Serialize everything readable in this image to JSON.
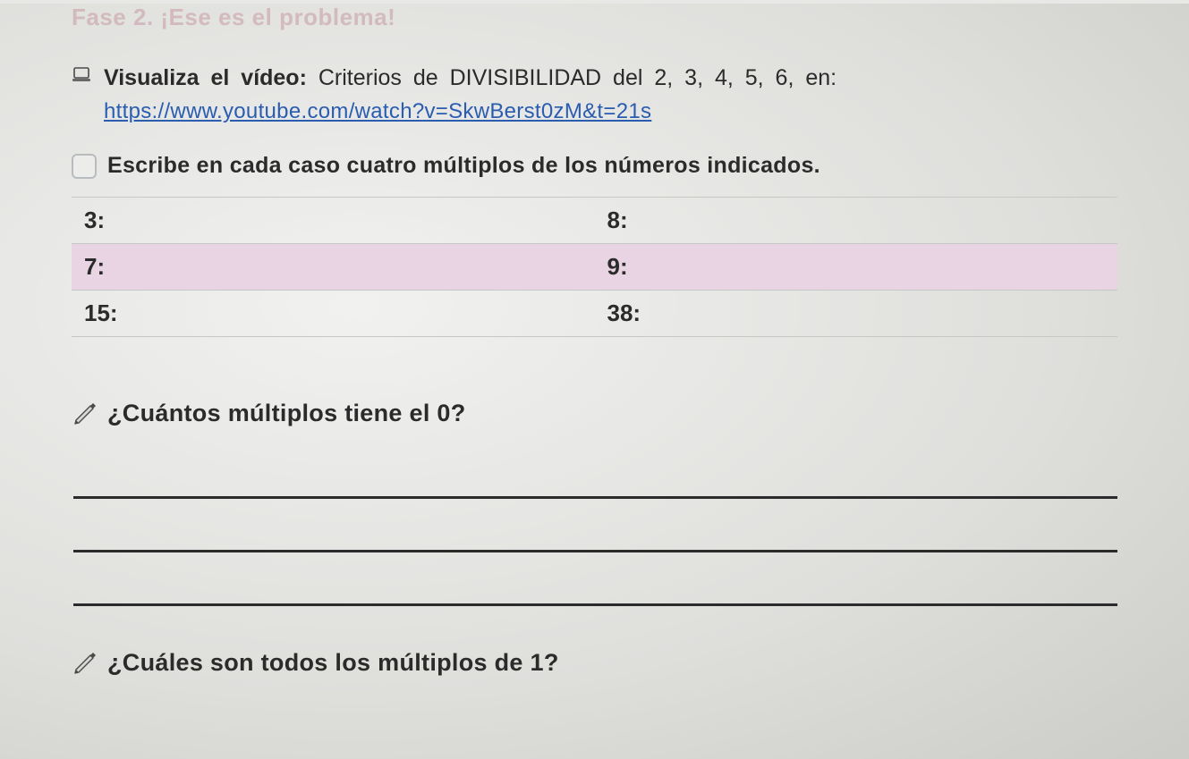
{
  "colors": {
    "background": "#e8e8e6",
    "phase_title": "#c08a95",
    "body_text": "#2b2b2b",
    "link": "#2a5db0",
    "table_border": "#c7c7c3",
    "highlight_row": "#e8d4e2",
    "rule_line": "#2b2b2b",
    "icon_stroke": "#4a4a4a"
  },
  "phase_title": "Fase 2. ¡Ese es el problema!",
  "video": {
    "prefix_bold": "Visualiza el vídeo:",
    "rest": " Criterios de DIVISIBILIDAD del 2, 3, 4, 5, 6, en:",
    "url": "https://www.youtube.com/watch?v=SkwBerst0zM&t=21s"
  },
  "instruction": "Escribe en cada caso cuatro múltiplos de los números indicados.",
  "table": {
    "rows": [
      {
        "left": "3:",
        "right": "8:",
        "highlight": false
      },
      {
        "left": "7:",
        "right": "9:",
        "highlight": true
      },
      {
        "left": "15:",
        "right": "38:",
        "highlight": false
      }
    ]
  },
  "question1": "¿Cuántos múltiplos tiene el 0?",
  "answer_lines_q1": 3,
  "question2": "¿Cuáles son todos los múltiplos de 1?"
}
